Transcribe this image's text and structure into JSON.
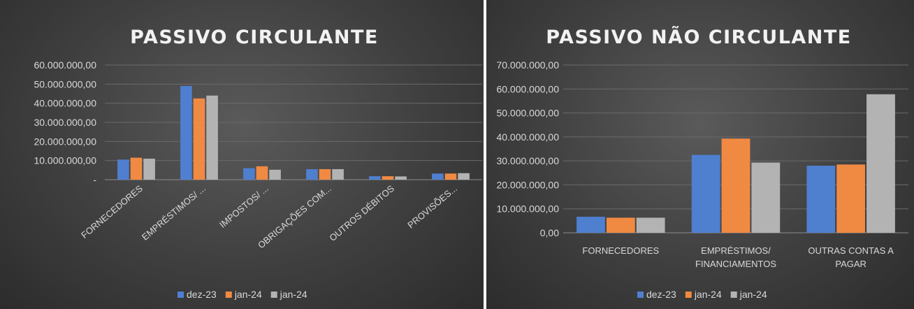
{
  "colors": {
    "series1": "#4f7fcf",
    "series2": "#f08a43",
    "series3": "#b3b3b3",
    "grid": "#6a6a6a",
    "axis": "#8c8c8c"
  },
  "chart_data": [
    {
      "type": "bar",
      "title": "PASSIVO CIRCULANTE",
      "categories": [
        "FORNECEDORES",
        "EMPRÉSTIMOS/ ...",
        "IMPOSTOS/ ...",
        "OBRIGAÇÕES COM...",
        "OUTROS DÉBITOS",
        "PROVISÕES..."
      ],
      "series": [
        {
          "name": "dez-23",
          "values": [
            10500000,
            49000000,
            6000000,
            5500000,
            1800000,
            3200000
          ]
        },
        {
          "name": "jan-24",
          "values": [
            11500000,
            42500000,
            7000000,
            5500000,
            1800000,
            3200000
          ]
        },
        {
          "name": "jan-24",
          "values": [
            11000000,
            44000000,
            5200000,
            5500000,
            1700000,
            3400000
          ]
        }
      ],
      "ylim": [
        0,
        60000000
      ],
      "yticks": [
        0,
        10000000,
        20000000,
        30000000,
        40000000,
        50000000,
        60000000
      ],
      "ytick_labels": [
        "-",
        "10.000.000,00",
        "20.000.000,00",
        "30.000.000,00",
        "40.000.000,00",
        "50.000.000,00",
        "60.000.000,00"
      ],
      "grid": true,
      "legend": "bottom",
      "xlabel": "",
      "ylabel": ""
    },
    {
      "type": "bar",
      "title": "PASSIVO NÃO CIRCULANTE",
      "categories": [
        [
          "FORNECEDORES"
        ],
        [
          "EMPRÉSTIMOS/",
          "FINANCIAMENTOS"
        ],
        [
          "OUTRAS CONTAS A",
          "PAGAR"
        ]
      ],
      "series": [
        {
          "name": "dez-23",
          "values": [
            6700000,
            32500000,
            28000000
          ]
        },
        {
          "name": "jan-24",
          "values": [
            6300000,
            39300000,
            28500000
          ]
        },
        {
          "name": "jan-24",
          "values": [
            6300000,
            29300000,
            57800000
          ]
        }
      ],
      "ylim": [
        0,
        70000000
      ],
      "yticks": [
        0,
        10000000,
        20000000,
        30000000,
        40000000,
        50000000,
        60000000,
        70000000
      ],
      "ytick_labels": [
        "0,00",
        "10.000.000,00",
        "20.000.000,00",
        "30.000.000,00",
        "40.000.000,00",
        "50.000.000,00",
        "60.000.000,00",
        "70.000.000,00"
      ],
      "grid": true,
      "legend": "bottom",
      "xlabel": "",
      "ylabel": ""
    }
  ]
}
